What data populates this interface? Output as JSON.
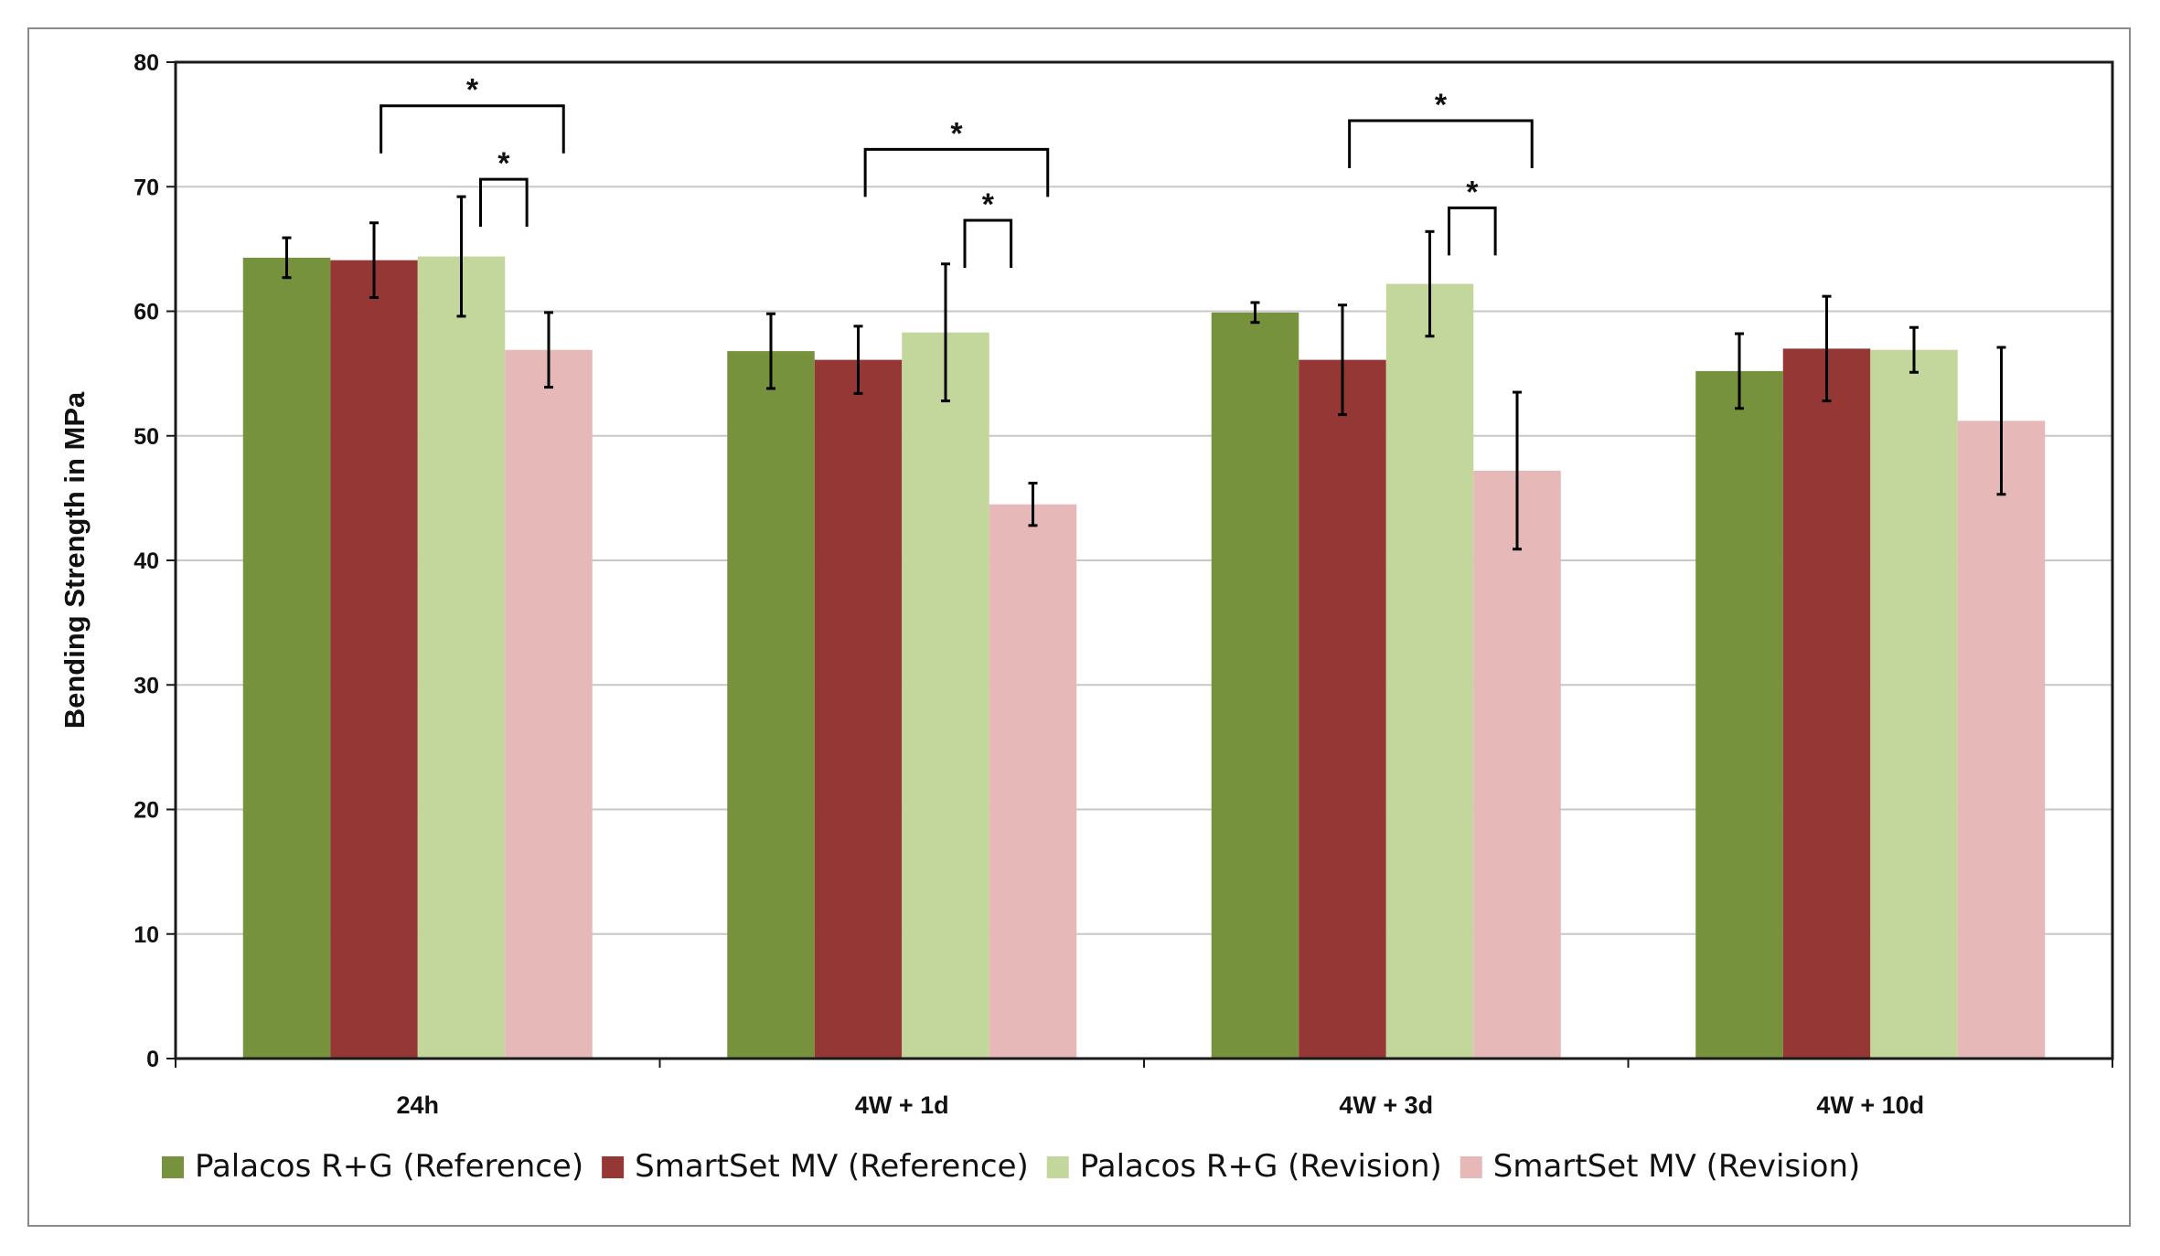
{
  "chart_data": {
    "type": "bar",
    "title": "",
    "xlabel": "",
    "ylabel": "Bending Strength in MPa",
    "ylim": [
      0,
      80
    ],
    "yticks": [
      0,
      10,
      20,
      30,
      40,
      50,
      60,
      70,
      80
    ],
    "grid": true,
    "legend_position": "bottom",
    "categories": [
      "24h",
      "4W + 1d",
      "4W + 3d",
      "4W + 10d"
    ],
    "series": [
      {
        "name": "Palacos R+G (Reference)",
        "color": "#76923c",
        "values": [
          64.3,
          56.8,
          59.9,
          55.2
        ],
        "errors": [
          1.6,
          3.0,
          0.8,
          3.0
        ]
      },
      {
        "name": "SmartSet MV (Reference)",
        "color": "#953735",
        "values": [
          64.1,
          56.1,
          56.1,
          57.0
        ],
        "errors": [
          3.0,
          2.7,
          4.4,
          4.2
        ]
      },
      {
        "name": "Palacos R+G (Revision)",
        "color": "#c3d69b",
        "values": [
          64.4,
          58.3,
          62.2,
          56.9
        ],
        "errors": [
          4.8,
          5.5,
          4.2,
          1.8
        ]
      },
      {
        "name": "SmartSet MV (Revision)",
        "color": "#e6b9b8",
        "values": [
          56.9,
          44.5,
          47.2,
          51.2
        ],
        "errors": [
          3.0,
          1.7,
          6.3,
          5.9
        ]
      }
    ],
    "significance": [
      {
        "category": 0,
        "from_series": 0,
        "to_series": 3,
        "level": 76.5,
        "label": "*"
      },
      {
        "category": 0,
        "from_series": 2,
        "to_series": 3,
        "level": 70.6,
        "label": "*"
      },
      {
        "category": 1,
        "from_series": 0,
        "to_series": 3,
        "level": 73.0,
        "label": "*"
      },
      {
        "category": 1,
        "from_series": 2,
        "to_series": 3,
        "level": 67.3,
        "label": "*"
      },
      {
        "category": 2,
        "from_series": 0,
        "to_series": 3,
        "level": 75.3,
        "label": "*"
      },
      {
        "category": 2,
        "from_series": 2,
        "to_series": 3,
        "level": 68.3,
        "label": "*"
      }
    ]
  }
}
